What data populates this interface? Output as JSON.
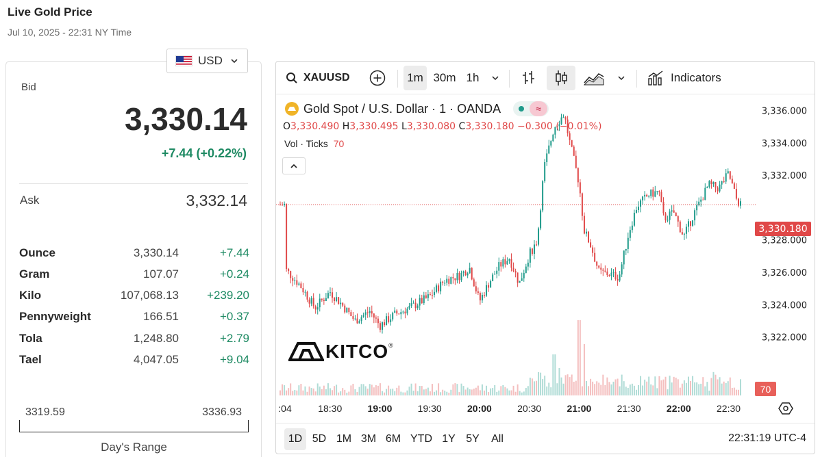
{
  "header": {
    "title": "Live Gold Price",
    "timestamp": "Jul 10, 2025 - 22:31 NY Time"
  },
  "currency": {
    "selected": "USD"
  },
  "quote": {
    "bid_label": "Bid",
    "bid": "3,330.14",
    "change": "+7.44 (+0.22%)",
    "ask_label": "Ask",
    "ask": "3,332.14"
  },
  "units": [
    {
      "name": "Ounce",
      "price": "3,330.14",
      "change": "+7.44"
    },
    {
      "name": "Gram",
      "price": "107.07",
      "change": "+0.24"
    },
    {
      "name": "Kilo",
      "price": "107,068.13",
      "change": "+239.20"
    },
    {
      "name": "Pennyweight",
      "price": "166.51",
      "change": "+0.37"
    },
    {
      "name": "Tola",
      "price": "1,248.80",
      "change": "+2.79"
    },
    {
      "name": "Tael",
      "price": "4,047.05",
      "change": "+9.04"
    }
  ],
  "day_range": {
    "low": "3319.59",
    "high": "3336.93",
    "label": "Day's Range"
  },
  "chart_toolbar": {
    "symbol": "XAUUSD",
    "intervals": [
      "1m",
      "30m",
      "1h"
    ],
    "active_interval": "1m",
    "indicators_label": "Indicators"
  },
  "chart_legend": {
    "title": "Gold Spot / U.S. Dollar · 1 · OANDA",
    "o_label": "O",
    "o": "3,330.490",
    "h_label": "H",
    "h": "3,330.495",
    "l_label": "L",
    "l": "3,330.080",
    "c_label": "C",
    "c": "3,330.180",
    "chg": "−0.300 (−0.01%)",
    "vol_label": "Vol · Ticks",
    "vol": "70"
  },
  "watermark": "KITCO",
  "ranges": [
    "1D",
    "5D",
    "1M",
    "3M",
    "6M",
    "YTD",
    "1Y",
    "5Y",
    "All"
  ],
  "active_range": "1D",
  "clock": "22:31:19 UTC-4",
  "colors": {
    "up": "#1e9a8a",
    "down": "#e04848",
    "positive": "#1e8a63"
  },
  "chart_data": {
    "type": "candlestick",
    "y_ticks": [
      "3,336.000",
      "3,334.000",
      "3,332.000",
      "3,330.180",
      "3,328.000",
      "3,326.000",
      "3,324.000",
      "3,322.000"
    ],
    "x_ticks": [
      ":04",
      "18:30",
      "19:00",
      "19:30",
      "20:00",
      "20:30",
      "21:00",
      "21:30",
      "22:00",
      "22:30"
    ],
    "ylim": [
      3320.5,
      3337
    ],
    "last_price": "3,330.180",
    "last_volume": "70",
    "close_path": [
      [
        18.05,
        3326.2
      ],
      [
        18.2,
        3325.2
      ],
      [
        18.35,
        3323.8
      ],
      [
        18.5,
        3324.8
      ],
      [
        18.62,
        3324.0
      ],
      [
        18.75,
        3323.0
      ],
      [
        18.9,
        3323.6
      ],
      [
        19.0,
        3322.7
      ],
      [
        19.15,
        3323.4
      ],
      [
        19.3,
        3323.8
      ],
      [
        19.5,
        3324.5
      ],
      [
        19.65,
        3325.5
      ],
      [
        19.8,
        3325.8
      ],
      [
        19.9,
        3326.3
      ],
      [
        20.0,
        3324.2
      ],
      [
        20.1,
        3325.4
      ],
      [
        20.2,
        3326.4
      ],
      [
        20.3,
        3326.9
      ],
      [
        20.4,
        3325.3
      ],
      [
        20.5,
        3327.1
      ],
      [
        20.58,
        3328.0
      ],
      [
        20.65,
        3332.5
      ],
      [
        20.75,
        3335.0
      ],
      [
        20.85,
        3335.8
      ],
      [
        20.9,
        3334.2
      ],
      [
        21.0,
        3331.5
      ],
      [
        21.05,
        3328.6
      ],
      [
        21.12,
        3327.6
      ],
      [
        21.2,
        3326.0
      ],
      [
        21.3,
        3325.9
      ],
      [
        21.4,
        3325.7
      ],
      [
        21.5,
        3328.5
      ],
      [
        21.58,
        3330.1
      ],
      [
        21.7,
        3330.8
      ],
      [
        21.8,
        3331.0
      ],
      [
        21.85,
        3329.3
      ],
      [
        21.95,
        3329.7
      ],
      [
        22.05,
        3328.2
      ],
      [
        22.15,
        3329.6
      ],
      [
        22.3,
        3331.4
      ],
      [
        22.4,
        3331.2
      ],
      [
        22.5,
        3332.1
      ],
      [
        22.58,
        3330.5
      ],
      [
        22.62,
        3330.18
      ]
    ],
    "volume_spikes": [
      [
        20.75,
        60
      ],
      [
        21.0,
        110
      ],
      [
        21.05,
        75
      ],
      [
        20.8,
        40
      ]
    ]
  }
}
